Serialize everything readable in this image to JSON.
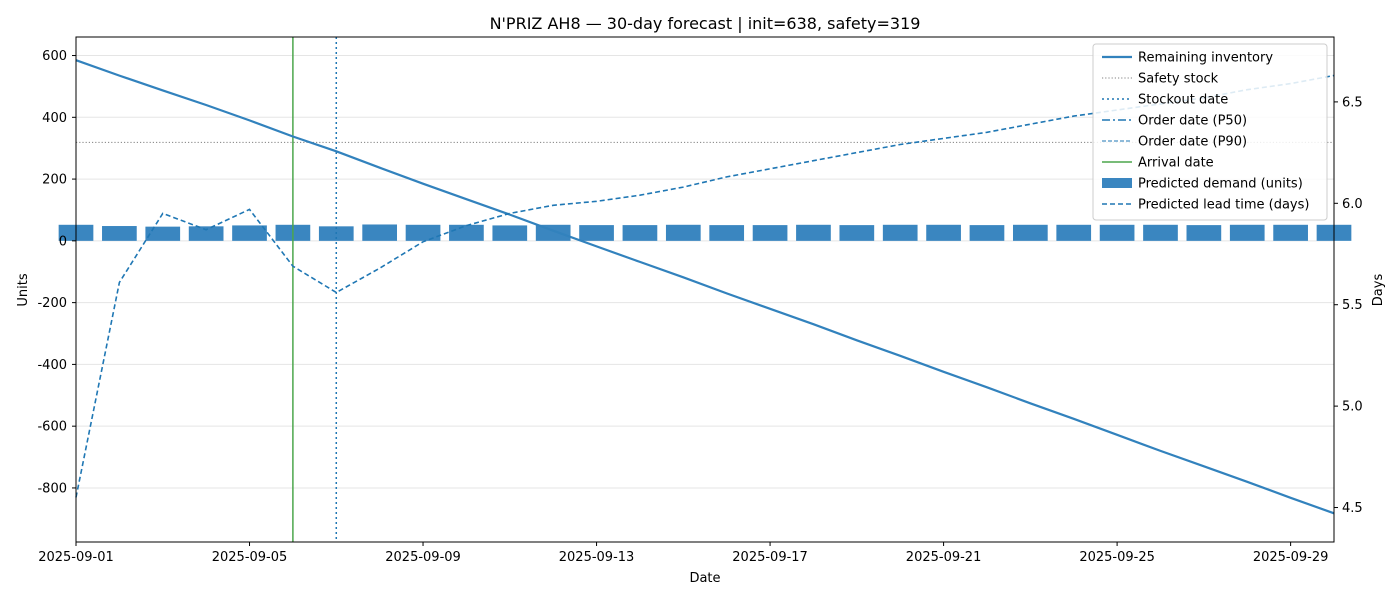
{
  "chart_data": {
    "type": "line",
    "title": "N'PRIZ AH8 — 30-day forecast | init=638, safety=319",
    "xlabel": "Date",
    "ylabel": "Units",
    "y2label": "Days",
    "x_tick_labels": [
      "2025-09-01",
      "2025-09-05",
      "2025-09-09",
      "2025-09-13",
      "2025-09-17",
      "2025-09-21",
      "2025-09-25",
      "2025-09-29"
    ],
    "y_ticks": [
      -800,
      -600,
      -400,
      -200,
      0,
      200,
      400,
      600
    ],
    "y2_ticks": [
      4.5,
      5.0,
      5.5,
      6.0,
      6.5
    ],
    "y2_tick_labels": [
      "4.5",
      "5.0",
      "5.5",
      "6.0",
      "6.5"
    ],
    "ylim": [
      -975,
      660
    ],
    "y2lim": [
      4.33,
      6.82
    ],
    "xlim": [
      "2025-09-01",
      "2025-09-30"
    ],
    "grid": "horizontal",
    "legend_position": "top-right",
    "colors": {
      "inventory": "#3282bd",
      "safety": "#808080",
      "stockout": "#1f77b4",
      "arrival": "#4ca64c",
      "demand": "#3a86c0",
      "lead": "#1f77b4"
    },
    "dates": [
      "2025-09-01",
      "2025-09-02",
      "2025-09-03",
      "2025-09-04",
      "2025-09-05",
      "2025-09-06",
      "2025-09-07",
      "2025-09-08",
      "2025-09-09",
      "2025-09-10",
      "2025-09-11",
      "2025-09-12",
      "2025-09-13",
      "2025-09-14",
      "2025-09-15",
      "2025-09-16",
      "2025-09-17",
      "2025-09-18",
      "2025-09-19",
      "2025-09-20",
      "2025-09-21",
      "2025-09-22",
      "2025-09-23",
      "2025-09-24",
      "2025-09-25",
      "2025-09-26",
      "2025-09-27",
      "2025-09-28",
      "2025-09-29",
      "2025-09-30"
    ],
    "series": [
      {
        "name": "Remaining inventory",
        "kind": "line",
        "values": [
          585,
          535,
          487,
          440,
          390,
          338,
          290,
          237,
          185,
          135,
          85,
          33,
          -18,
          -68,
          -118,
          -170,
          -220,
          -270,
          -322,
          -372,
          -424,
          -474,
          -526,
          -576,
          -628,
          -680,
          -730,
          -780,
          -832,
          -882
        ]
      },
      {
        "name": "Predicted demand (units)",
        "kind": "bar",
        "values": [
          52,
          48,
          46,
          47,
          50,
          52,
          47,
          53,
          52,
          52,
          50,
          52,
          51,
          51,
          52,
          51,
          51,
          52,
          51,
          52,
          52,
          51,
          52,
          52,
          52,
          52,
          51,
          52,
          52,
          52
        ]
      },
      {
        "name": "Predicted lead time (days)",
        "kind": "line",
        "axis": "right",
        "values": [
          4.55,
          5.61,
          5.95,
          5.87,
          5.97,
          5.69,
          5.56,
          5.68,
          5.81,
          5.89,
          5.95,
          5.99,
          6.01,
          6.04,
          6.08,
          6.13,
          6.17,
          6.21,
          6.25,
          6.29,
          6.32,
          6.35,
          6.39,
          6.43,
          6.46,
          6.49,
          6.52,
          6.56,
          6.59,
          6.63
        ]
      }
    ],
    "safety_stock": 319,
    "stockout_date": "2025-09-07",
    "arrival_date": "2025-09-06",
    "legend": [
      "Remaining inventory",
      "Safety stock",
      "Stockout date",
      "Order date (P50)",
      "Order date (P90)",
      "Arrival date",
      "Predicted demand (units)",
      "Predicted lead time (days)"
    ]
  }
}
